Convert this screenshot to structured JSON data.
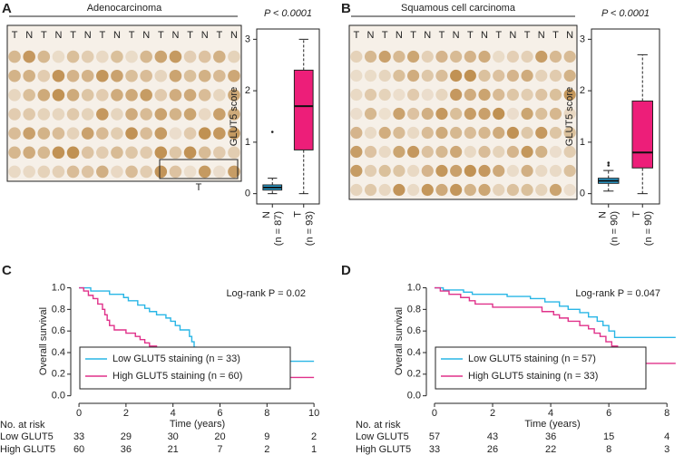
{
  "panel_labels": [
    "A",
    "B",
    "C",
    "D"
  ],
  "tma": [
    {
      "title": "Adenocarcinoma",
      "columns": [
        "T",
        "N",
        "T",
        "N",
        "T",
        "N",
        "T",
        "N",
        "T",
        "N",
        "T",
        "N",
        "T",
        "N",
        "T",
        "N"
      ],
      "inset_label": "T"
    },
    {
      "title": "Squamous cell carcinoma",
      "columns": [
        "T",
        "N",
        "T",
        "N",
        "T",
        "N",
        "T",
        "N",
        "T",
        "N",
        "T",
        "N",
        "T",
        "N",
        "T",
        "N"
      ]
    }
  ],
  "chart_data": [
    {
      "type": "box",
      "ylabel": "GLUT5 score",
      "annotation": "P < 0.0001",
      "categories": [
        "N",
        "T"
      ],
      "sample_labels": [
        "(n = 87)",
        "(n = 93)"
      ],
      "boxes": [
        {
          "color": "#29abe2",
          "whisker_low": 0,
          "q1": 0.07,
          "median": 0.12,
          "q3": 0.17,
          "whisker_high": 0.3,
          "outliers": [
            1.2
          ]
        },
        {
          "color": "#ed1e79",
          "whisker_low": 0,
          "q1": 0.85,
          "median": 1.7,
          "q3": 2.4,
          "whisker_high": 3.0,
          "outliers": []
        }
      ],
      "ylim": [
        -0.2,
        3.2
      ],
      "yticks": [
        0,
        1,
        2,
        3
      ]
    },
    {
      "type": "box",
      "ylabel": "GLUT5 score",
      "annotation": "P < 0.0001",
      "categories": [
        "N",
        "T"
      ],
      "sample_labels": [
        "(n = 90)",
        "(n = 90)"
      ],
      "boxes": [
        {
          "color": "#29abe2",
          "whisker_low": 0.05,
          "q1": 0.2,
          "median": 0.25,
          "q3": 0.3,
          "whisker_high": 0.45,
          "outliers": [
            0.55,
            0.6
          ]
        },
        {
          "color": "#ed1e79",
          "whisker_low": 0,
          "q1": 0.5,
          "median": 0.8,
          "q3": 1.8,
          "whisker_high": 2.7,
          "outliers": []
        }
      ],
      "ylim": [
        -0.2,
        3.2
      ],
      "yticks": [
        0,
        1,
        2,
        3
      ]
    },
    {
      "type": "step",
      "xlabel": "Time (years)",
      "ylabel": "Overall survival",
      "annotation": "Log-rank P = 0.02",
      "xlim": [
        -0.35,
        10.42
      ],
      "xticks": [
        0,
        2,
        4,
        6,
        8,
        10
      ],
      "ylim": [
        -0.07,
        1.08
      ],
      "yticks": [
        {
          "value": 0,
          "label": "0.0"
        },
        0.2,
        0.4,
        0.6,
        0.8,
        {
          "value": 1,
          "label": "1.0"
        }
      ],
      "legend": "bottom-left",
      "series": [
        {
          "name": "Low GLUT5 staining (n = 33)",
          "color": "#29b6e6",
          "x": [
            0,
            0.5,
            1.3,
            1.9,
            2.1,
            2.5,
            2.8,
            3.0,
            3.3,
            3.7,
            3.9,
            4.1,
            4.3,
            4.7,
            4.8,
            4.9,
            5.0,
            5.3,
            5.5,
            6.0,
            10
          ],
          "values": [
            1.0,
            0.97,
            0.94,
            0.91,
            0.88,
            0.84,
            0.81,
            0.78,
            0.75,
            0.72,
            0.69,
            0.65,
            0.61,
            0.55,
            0.5,
            0.45,
            0.42,
            0.39,
            0.36,
            0.32,
            0.32
          ]
        },
        {
          "name": "High GLUT5 staining (n = 60)",
          "color": "#e0318a",
          "x": [
            0,
            0.2,
            0.4,
            0.6,
            0.8,
            1.0,
            1.1,
            1.2,
            1.3,
            1.5,
            2.0,
            2.4,
            2.6,
            2.8,
            3.0,
            3.3,
            3.5,
            3.7,
            4.0,
            4.3,
            4.5,
            4.8,
            5.2,
            5.8,
            6.5,
            7.5,
            8.2,
            10
          ],
          "values": [
            1.0,
            0.97,
            0.93,
            0.9,
            0.85,
            0.8,
            0.75,
            0.7,
            0.65,
            0.61,
            0.58,
            0.55,
            0.52,
            0.49,
            0.46,
            0.43,
            0.41,
            0.38,
            0.35,
            0.32,
            0.29,
            0.27,
            0.24,
            0.22,
            0.2,
            0.19,
            0.17,
            0.17
          ]
        }
      ],
      "risk_table": {
        "title": "No. at risk",
        "rows": [
          {
            "name": "Low GLUT5",
            "values": [
              33,
              29,
              30,
              20,
              9,
              2
            ]
          },
          {
            "name": "High GLUT5",
            "values": [
              60,
              36,
              21,
              7,
              2,
              1
            ]
          }
        ]
      }
    },
    {
      "type": "step",
      "xlabel": "Time (years)",
      "ylabel": "Overall survival",
      "annotation": "Log-rank P = 0.047",
      "xlim": [
        -0.28,
        8.4
      ],
      "xticks": [
        0,
        2,
        4,
        6,
        8
      ],
      "ylim": [
        -0.07,
        1.08
      ],
      "yticks": [
        {
          "value": 0,
          "label": "0.0"
        },
        0.2,
        0.4,
        0.6,
        0.8,
        {
          "value": 1,
          "label": "1.0"
        }
      ],
      "legend": "bottom-left",
      "series": [
        {
          "name": "Low GLUT5 staining (n = 57)",
          "color": "#29b6e6",
          "x": [
            0,
            0.3,
            1.0,
            1.3,
            2.5,
            3.3,
            3.8,
            4.3,
            4.6,
            5.0,
            5.3,
            5.6,
            5.8,
            6.0,
            6.2,
            8.3
          ],
          "values": [
            1.0,
            0.98,
            0.96,
            0.94,
            0.92,
            0.9,
            0.87,
            0.83,
            0.8,
            0.77,
            0.73,
            0.69,
            0.65,
            0.6,
            0.54,
            0.54
          ]
        },
        {
          "name": "High GLUT5 staining (n = 33)",
          "color": "#e0318a",
          "x": [
            0,
            0.2,
            0.5,
            0.9,
            1.2,
            1.4,
            2.0,
            3.7,
            4.1,
            4.3,
            4.6,
            5.0,
            5.3,
            5.5,
            5.7,
            5.9,
            6.1,
            6.3,
            6.5,
            6.8,
            7.0,
            8.3
          ],
          "values": [
            1.0,
            0.97,
            0.94,
            0.91,
            0.88,
            0.85,
            0.82,
            0.78,
            0.75,
            0.72,
            0.69,
            0.65,
            0.62,
            0.58,
            0.55,
            0.5,
            0.46,
            0.42,
            0.38,
            0.34,
            0.3,
            0.3
          ]
        }
      ],
      "risk_table": {
        "title": "No. at risk",
        "rows": [
          {
            "name": "Low GLUT5",
            "values": [
              57,
              43,
              36,
              15,
              4
            ]
          },
          {
            "name": "High GLUT5",
            "values": [
              33,
              26,
              22,
              8,
              3
            ]
          }
        ]
      }
    }
  ]
}
